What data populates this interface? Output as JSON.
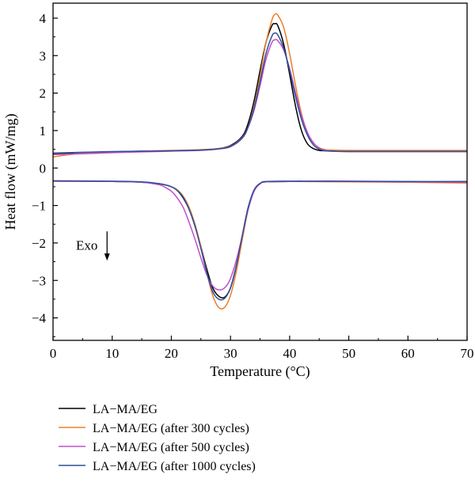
{
  "chart_data": {
    "type": "line",
    "title": "",
    "xlabel": "Temperature (°C)",
    "ylabel": "Heat flow (mW/mg)",
    "xlim": [
      0,
      70
    ],
    "ylim": [
      -4.6,
      4.4
    ],
    "x_ticks": [
      0,
      10,
      20,
      30,
      40,
      50,
      60,
      70
    ],
    "y_ticks": [
      4,
      3,
      2,
      1,
      0,
      -1,
      -2,
      -3,
      -4
    ],
    "x_tick_labels": [
      "0",
      "10",
      "20",
      "30",
      "40",
      "50",
      "60",
      "70"
    ],
    "y_tick_labels": [
      "4",
      "3",
      "2",
      "1",
      "0",
      "−1",
      "−2",
      "−3",
      "−4"
    ],
    "grid": false,
    "legend_position": "below",
    "annotation": {
      "text": "Exo",
      "x": 9,
      "y": -2.05,
      "arrow": "down"
    },
    "series": [
      {
        "name": "LA−MA/EG",
        "color": "#000000",
        "heating": {
          "x": [
            0,
            5,
            10,
            15,
            20,
            25,
            28,
            30,
            32,
            33,
            34,
            35,
            36,
            37,
            37.5,
            38,
            39,
            40,
            41,
            42,
            43,
            44,
            45,
            46,
            50,
            60,
            70
          ],
          "y": [
            0.38,
            0.41,
            0.43,
            0.45,
            0.46,
            0.48,
            0.52,
            0.6,
            0.85,
            1.2,
            1.8,
            2.6,
            3.35,
            3.8,
            3.85,
            3.8,
            3.3,
            2.5,
            1.65,
            1.0,
            0.65,
            0.52,
            0.47,
            0.46,
            0.45,
            0.45,
            0.45
          ]
        },
        "cooling": {
          "x": [
            0,
            10,
            15,
            18,
            20,
            21,
            22,
            23,
            24,
            25,
            26,
            27,
            28,
            29,
            30,
            31,
            32,
            33,
            34,
            35,
            36,
            40,
            50,
            60,
            70
          ],
          "y": [
            -0.35,
            -0.36,
            -0.38,
            -0.42,
            -0.5,
            -0.6,
            -0.8,
            -1.1,
            -1.55,
            -2.1,
            -2.7,
            -3.2,
            -3.42,
            -3.45,
            -3.2,
            -2.6,
            -1.8,
            -1.05,
            -0.6,
            -0.42,
            -0.37,
            -0.36,
            -0.36,
            -0.37,
            -0.38
          ]
        }
      },
      {
        "name": "LA−MA/EG (after 300 cycles)",
        "color": "#e8802c",
        "heating": {
          "x": [
            0,
            5,
            10,
            15,
            20,
            25,
            28,
            30,
            32,
            33,
            34,
            35,
            36,
            37,
            37.5,
            38,
            39,
            40,
            41,
            42,
            43,
            44,
            45,
            46,
            47,
            50,
            60,
            70
          ],
          "y": [
            0.3,
            0.4,
            0.43,
            0.45,
            0.47,
            0.49,
            0.52,
            0.58,
            0.8,
            1.1,
            1.65,
            2.45,
            3.35,
            3.95,
            4.1,
            4.08,
            3.75,
            3.05,
            2.2,
            1.45,
            0.95,
            0.67,
            0.54,
            0.49,
            0.48,
            0.47,
            0.47,
            0.47
          ]
        },
        "cooling": {
          "x": [
            0,
            10,
            15,
            18,
            20,
            21,
            22,
            23,
            24,
            25,
            26,
            27,
            28,
            29,
            30,
            31,
            32,
            33,
            34,
            35,
            36,
            40,
            50,
            60,
            70
          ],
          "y": [
            -0.35,
            -0.36,
            -0.38,
            -0.42,
            -0.5,
            -0.58,
            -0.75,
            -1.05,
            -1.5,
            -2.1,
            -2.8,
            -3.4,
            -3.72,
            -3.72,
            -3.4,
            -2.75,
            -1.9,
            -1.1,
            -0.6,
            -0.42,
            -0.37,
            -0.36,
            -0.37,
            -0.38,
            -0.4
          ]
        }
      },
      {
        "name": "LA−MA/EG (after 500 cycles)",
        "color": "#c04ec8",
        "heating": {
          "x": [
            0,
            5,
            10,
            15,
            20,
            25,
            28,
            30,
            32,
            33,
            34,
            35,
            36,
            37,
            37.5,
            38,
            39,
            40,
            41,
            42,
            43,
            44,
            45,
            46,
            47,
            50,
            60,
            70
          ],
          "y": [
            0.36,
            0.38,
            0.41,
            0.43,
            0.45,
            0.47,
            0.51,
            0.58,
            0.82,
            1.1,
            1.55,
            2.2,
            2.9,
            3.35,
            3.42,
            3.4,
            3.15,
            2.65,
            2.0,
            1.4,
            0.95,
            0.68,
            0.53,
            0.47,
            0.45,
            0.44,
            0.44,
            0.44
          ]
        },
        "cooling": {
          "x": [
            0,
            10,
            15,
            18,
            19,
            20,
            21,
            22,
            23,
            24,
            25,
            26,
            27,
            28,
            29,
            30,
            31,
            32,
            33,
            34,
            35,
            36,
            40,
            50,
            60,
            70
          ],
          "y": [
            -0.35,
            -0.36,
            -0.38,
            -0.45,
            -0.52,
            -0.62,
            -0.8,
            -1.05,
            -1.45,
            -1.9,
            -2.4,
            -2.85,
            -3.15,
            -3.25,
            -3.2,
            -2.95,
            -2.45,
            -1.8,
            -1.1,
            -0.62,
            -0.42,
            -0.37,
            -0.36,
            -0.36,
            -0.37,
            -0.38
          ]
        }
      },
      {
        "name": "LA−MA/EG (after 1000 cycles)",
        "color": "#2f4f9c",
        "heating": {
          "x": [
            0,
            5,
            10,
            15,
            20,
            25,
            28,
            30,
            32,
            33,
            34,
            35,
            36,
            37,
            37.5,
            38,
            39,
            40,
            41,
            42,
            43,
            44,
            45,
            46,
            47,
            50,
            60,
            70
          ],
          "y": [
            0.4,
            0.42,
            0.44,
            0.45,
            0.46,
            0.48,
            0.51,
            0.57,
            0.8,
            1.1,
            1.6,
            2.3,
            3.05,
            3.52,
            3.6,
            3.55,
            3.2,
            2.6,
            1.9,
            1.3,
            0.88,
            0.62,
            0.5,
            0.46,
            0.45,
            0.44,
            0.44,
            0.44
          ]
        },
        "cooling": {
          "x": [
            0,
            10,
            15,
            18,
            20,
            21,
            22,
            23,
            24,
            25,
            26,
            27,
            28,
            29,
            30,
            31,
            32,
            33,
            34,
            35,
            36,
            40,
            50,
            60,
            70
          ],
          "y": [
            -0.34,
            -0.35,
            -0.37,
            -0.42,
            -0.5,
            -0.6,
            -0.78,
            -1.1,
            -1.55,
            -2.15,
            -2.8,
            -3.3,
            -3.5,
            -3.48,
            -3.2,
            -2.6,
            -1.8,
            -1.05,
            -0.58,
            -0.41,
            -0.36,
            -0.35,
            -0.35,
            -0.36,
            -0.36
          ]
        }
      }
    ]
  }
}
